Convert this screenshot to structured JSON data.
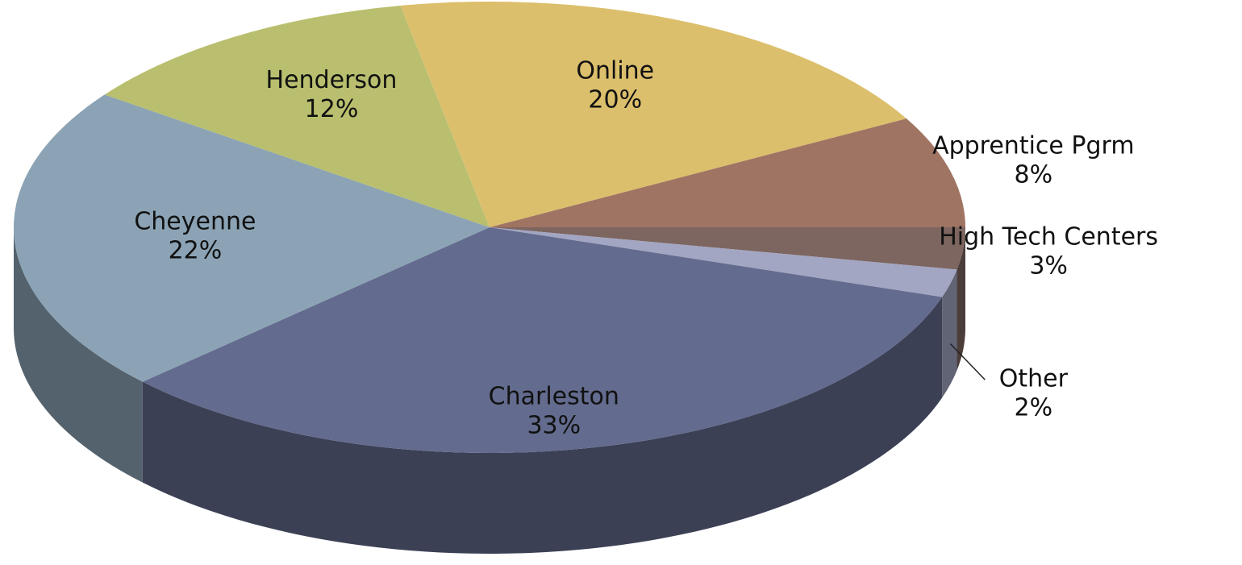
{
  "chart_data": {
    "type": "pie3d",
    "categories": [
      "High Tech Centers",
      "Other",
      "Charleston",
      "Cheyenne",
      "Henderson",
      "Online",
      "Apprentice Pgrm"
    ],
    "values": [
      3,
      2,
      33,
      22,
      12,
      20,
      8
    ],
    "value_labels": [
      "3%",
      "2%",
      "33%",
      "22%",
      "12%",
      "20%",
      "8%"
    ],
    "colors": [
      "#7d6560",
      "#a2a6c2",
      "#636b8e",
      "#8ba3b5",
      "#b9bf6e",
      "#dcbf6c",
      "#a07463"
    ]
  }
}
